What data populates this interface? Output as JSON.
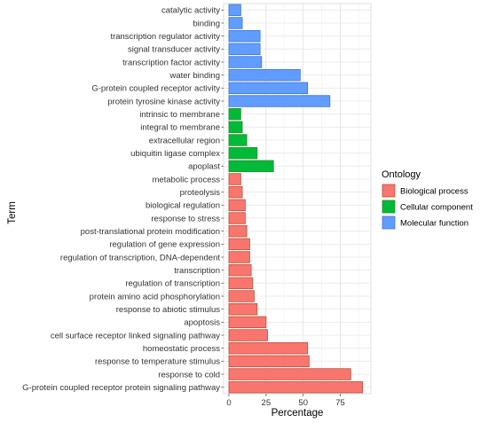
{
  "chart_data": {
    "type": "bar",
    "orientation": "horizontal",
    "xlabel": "Percentage",
    "ylabel": "Term",
    "xlim": [
      0,
      92
    ],
    "x_ticks": [
      0,
      25,
      50,
      75
    ],
    "grid": true,
    "legend": {
      "title": "Ontology",
      "placement": "right",
      "entries": [
        {
          "name": "Biological process",
          "color": "#f8766d"
        },
        {
          "name": "Cellular component",
          "color": "#00ba38"
        },
        {
          "name": "Molecular function",
          "color": "#619cff"
        }
      ]
    },
    "bars": [
      {
        "term": "catalytic activity",
        "value": 8,
        "ontology": "Molecular function"
      },
      {
        "term": "binding",
        "value": 9,
        "ontology": "Molecular function"
      },
      {
        "term": "transcription regulator activity",
        "value": 21,
        "ontology": "Molecular function"
      },
      {
        "term": "signal transducer activity",
        "value": 21,
        "ontology": "Molecular function"
      },
      {
        "term": "transcription factor activity",
        "value": 22,
        "ontology": "Molecular function"
      },
      {
        "term": "water binding",
        "value": 48,
        "ontology": "Molecular function"
      },
      {
        "term": "G-protein coupled receptor activity",
        "value": 53,
        "ontology": "Molecular function"
      },
      {
        "term": "protein tyrosine kinase activity",
        "value": 68,
        "ontology": "Molecular function"
      },
      {
        "term": "intrinsic to membrane",
        "value": 8,
        "ontology": "Cellular component"
      },
      {
        "term": "integral to membrane",
        "value": 9,
        "ontology": "Cellular component"
      },
      {
        "term": "extracellular region",
        "value": 12,
        "ontology": "Cellular component"
      },
      {
        "term": "ubiquitin ligase complex",
        "value": 19,
        "ontology": "Cellular component"
      },
      {
        "term": "apoplast",
        "value": 30,
        "ontology": "Cellular component"
      },
      {
        "term": "metabolic process",
        "value": 8,
        "ontology": "Biological process"
      },
      {
        "term": "proteolysis",
        "value": 9,
        "ontology": "Biological process"
      },
      {
        "term": "biological regulation",
        "value": 11,
        "ontology": "Biological process"
      },
      {
        "term": "response to stress",
        "value": 11,
        "ontology": "Biological process"
      },
      {
        "term": "post-translational protein modification",
        "value": 12,
        "ontology": "Biological process"
      },
      {
        "term": "regulation of gene expression",
        "value": 14,
        "ontology": "Biological process"
      },
      {
        "term": "regulation of transcription, DNA-dependent",
        "value": 14,
        "ontology": "Biological process"
      },
      {
        "term": "transcription",
        "value": 15,
        "ontology": "Biological process"
      },
      {
        "term": "regulation of transcription",
        "value": 16,
        "ontology": "Biological process"
      },
      {
        "term": "protein amino acid phosphorylation",
        "value": 17,
        "ontology": "Biological process"
      },
      {
        "term": "response to abiotic stimulus",
        "value": 19,
        "ontology": "Biological process"
      },
      {
        "term": "apoptosis",
        "value": 25,
        "ontology": "Biological process"
      },
      {
        "term": "cell surface receptor linked signaling pathway",
        "value": 26,
        "ontology": "Biological process"
      },
      {
        "term": "homeostatic process",
        "value": 53,
        "ontology": "Biological process"
      },
      {
        "term": "response to temperature stimulus",
        "value": 54,
        "ontology": "Biological process"
      },
      {
        "term": "response to cold",
        "value": 82,
        "ontology": "Biological process"
      },
      {
        "term": "G-protein coupled receptor protein signaling pathway",
        "value": 90,
        "ontology": "Biological process"
      }
    ]
  }
}
